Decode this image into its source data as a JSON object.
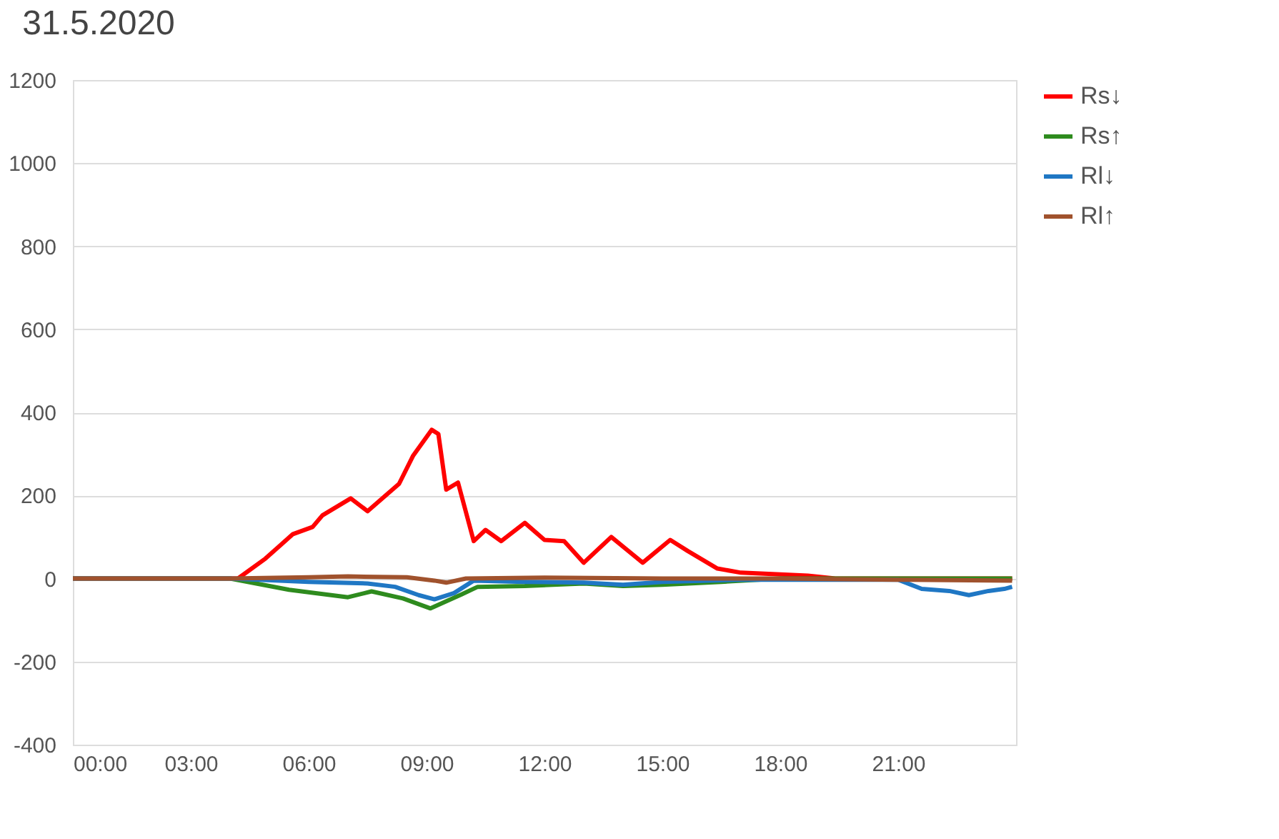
{
  "chart_data": {
    "type": "line",
    "title": "31.5.2020",
    "xlim": [
      0,
      24
    ],
    "ylim": [
      -400,
      1200
    ],
    "yticks": [
      -400,
      -200,
      0,
      200,
      400,
      600,
      800,
      1000,
      1200
    ],
    "xticks": [
      {
        "value": 0,
        "label": "00:00"
      },
      {
        "value": 3,
        "label": "03:00"
      },
      {
        "value": 6,
        "label": "06:00"
      },
      {
        "value": 9,
        "label": "09:00"
      },
      {
        "value": 12,
        "label": "12:00"
      },
      {
        "value": 15,
        "label": "15:00"
      },
      {
        "value": 18,
        "label": "18:00"
      },
      {
        "value": 21,
        "label": "21:00"
      }
    ],
    "grid": "y",
    "legend": "right",
    "marker": "none",
    "line_style": "solid",
    "series": [
      {
        "name": "Rs↓",
        "color": "#ff0000",
        "x": [
          0,
          3.9,
          4.2,
          4.9,
          5.6,
          6.1,
          6.35,
          7.07,
          7.5,
          8.3,
          8.66,
          9.13,
          9.3,
          9.5,
          9.8,
          10.2,
          10.5,
          10.9,
          11.5,
          12.0,
          12.5,
          13.0,
          13.7,
          14.5,
          15.2,
          15.65,
          16.4,
          17.0,
          18.7,
          19.4,
          23.9
        ],
        "values": [
          0,
          0,
          0,
          48,
          107,
          124,
          152,
          193,
          162,
          228,
          296,
          358,
          348,
          214,
          231,
          90,
          117,
          90,
          134,
          93,
          90,
          38,
          100,
          38,
          93,
          66,
          24,
          14,
          7,
          0,
          0
        ]
      },
      {
        "name": "Rs↑",
        "color": "#2e8b1e",
        "x": [
          0,
          4.0,
          5.5,
          7.0,
          7.6,
          8.4,
          9.1,
          9.9,
          10.3,
          11.5,
          13.0,
          14.0,
          15.0,
          16.5,
          18.0,
          23.9
        ],
        "values": [
          0,
          0,
          -27,
          -45,
          -31,
          -48,
          -72,
          -38,
          -20,
          -18,
          -12,
          -18,
          -15,
          -8,
          0,
          0
        ]
      },
      {
        "name": "Rl↓",
        "color": "#1f77c4",
        "x": [
          0,
          4.0,
          6.0,
          7.5,
          8.2,
          8.8,
          9.2,
          9.7,
          10.2,
          11.5,
          13.0,
          14.0,
          15.0,
          17.0,
          21.0,
          21.6,
          22.3,
          22.8,
          23.3,
          23.7,
          23.9
        ],
        "values": [
          0,
          0,
          -8,
          -12,
          -20,
          -40,
          -50,
          -35,
          -5,
          -8,
          -10,
          -15,
          -8,
          -3,
          -3,
          -25,
          -30,
          -40,
          -30,
          -25,
          -20
        ]
      },
      {
        "name": "Rl↑",
        "color": "#a0522d",
        "x": [
          0,
          4.0,
          6.0,
          7.0,
          8.5,
          9.2,
          9.5,
          10.0,
          12.0,
          15.0,
          18.0,
          21.0,
          23.9
        ],
        "values": [
          0,
          0,
          3,
          5,
          3,
          -5,
          -10,
          0,
          2,
          0,
          0,
          -3,
          -5
        ]
      }
    ]
  }
}
